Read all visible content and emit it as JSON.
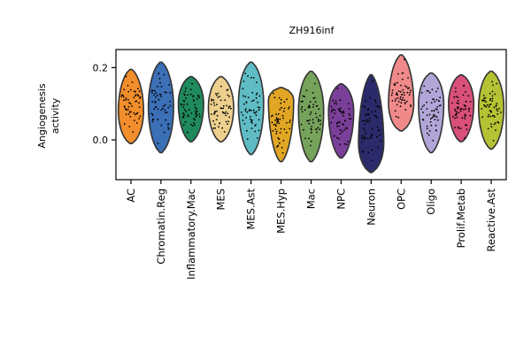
{
  "chart_data": {
    "type": "violin",
    "title": "ZH916inf",
    "ylabel": [
      "Angiogenesis",
      "activity"
    ],
    "ylim": [
      -0.11,
      0.25
    ],
    "yticks": [
      0.0,
      0.2
    ],
    "ytick_labels": [
      "0.0",
      "0.2"
    ],
    "categories": [
      "AC",
      "Chromatin.Reg",
      "Inflammatory.Mac",
      "MES",
      "MES.Ast",
      "MES.Hyp",
      "Mac",
      "NPC",
      "Neuron",
      "OPC",
      "Oligo",
      "Prolif.Metab",
      "Reactive.Ast"
    ],
    "colors": [
      "#f28e2b",
      "#3b6fb6",
      "#1f8a5b",
      "#edcf8e",
      "#5fbcc4",
      "#e1a624",
      "#76a35b",
      "#7a3f98",
      "#2b2a6b",
      "#f08a8a",
      "#b2a6d8",
      "#d9507a",
      "#b5c234"
    ],
    "series": [
      {
        "name": "AC",
        "min": -0.01,
        "max": 0.195,
        "median": 0.08
      },
      {
        "name": "Chromatin.Reg",
        "min": -0.035,
        "max": 0.215,
        "median": 0.09
      },
      {
        "name": "Inflammatory.Mac",
        "min": -0.005,
        "max": 0.175,
        "median": 0.1
      },
      {
        "name": "MES",
        "min": -0.005,
        "max": 0.175,
        "median": 0.09
      },
      {
        "name": "MES.Ast",
        "min": -0.04,
        "max": 0.215,
        "median": 0.1
      },
      {
        "name": "MES.Hyp",
        "min": -0.06,
        "max": 0.145,
        "median": 0.11
      },
      {
        "name": "Mac",
        "min": -0.06,
        "max": 0.19,
        "median": 0.08
      },
      {
        "name": "NPC",
        "min": -0.05,
        "max": 0.155,
        "median": 0.08
      },
      {
        "name": "Neuron",
        "min": -0.09,
        "max": 0.18,
        "median": -0.01
      },
      {
        "name": "OPC",
        "min": 0.025,
        "max": 0.235,
        "median": 0.1
      },
      {
        "name": "Oligo",
        "min": -0.035,
        "max": 0.185,
        "median": 0.1
      },
      {
        "name": "Prolif.Metab",
        "min": -0.005,
        "max": 0.18,
        "median": 0.1
      },
      {
        "name": "Reactive.Ast",
        "min": -0.025,
        "max": 0.19,
        "median": 0.09
      }
    ],
    "grid": false,
    "legend": "none"
  }
}
